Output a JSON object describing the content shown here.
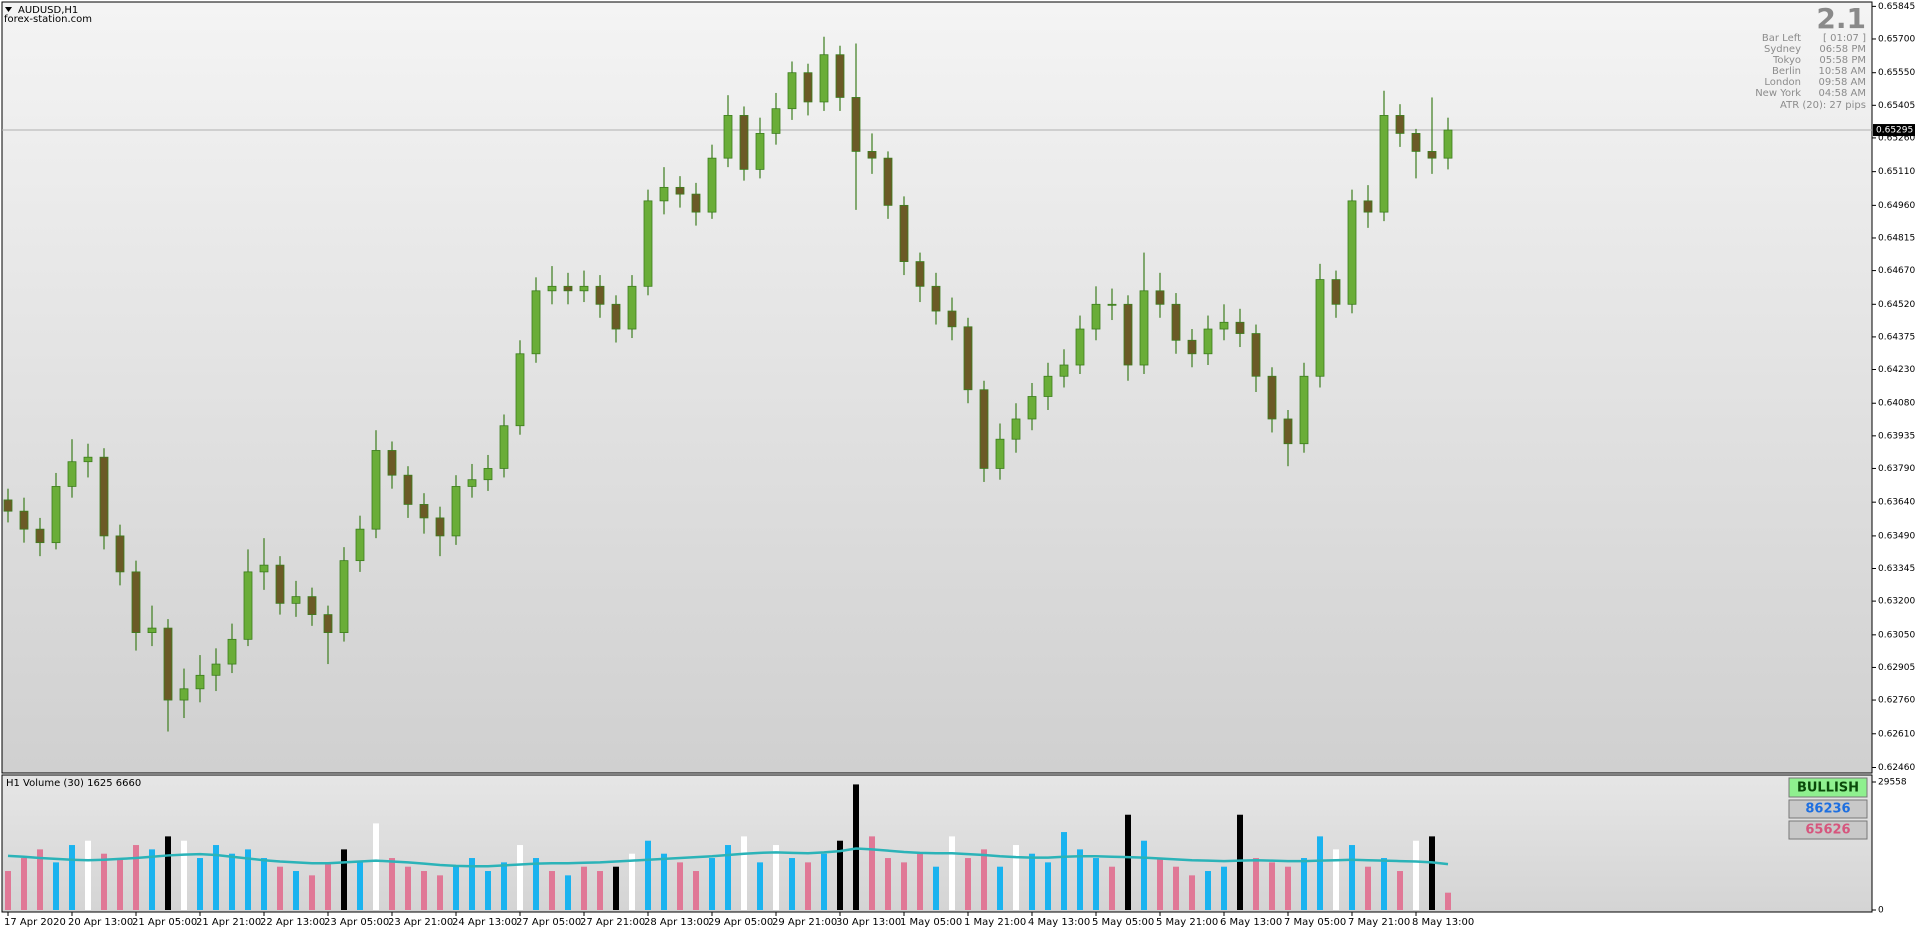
{
  "symbol": "AUDUSD,H1",
  "watermark": "forex-station.com",
  "info": {
    "version": "2.1",
    "rows": [
      [
        "Bar Left",
        "[ 01:07 ]"
      ],
      [
        "Sydney",
        "06:58 PM"
      ],
      [
        "Tokyo",
        "05:58 PM"
      ],
      [
        "Berlin",
        "10:58 AM"
      ],
      [
        "London",
        "09:58 AM"
      ],
      [
        "New York",
        "04:58 AM"
      ]
    ],
    "atr": "ATR (20): 27 pips"
  },
  "chart_data": [
    {
      "type": "candlestick",
      "categories": [
        "17 Apr 2020",
        null,
        null,
        null,
        "20 Apr 13:00",
        null,
        null,
        null,
        "21 Apr 05:00",
        null,
        null,
        null,
        "21 Apr 21:00",
        null,
        null,
        null,
        "22 Apr 13:00",
        null,
        null,
        null,
        "23 Apr 05:00",
        null,
        null,
        null,
        "23 Apr 21:00",
        null,
        null,
        null,
        "24 Apr 13:00",
        null,
        null,
        null,
        "27 Apr 05:00",
        null,
        null,
        null,
        "27 Apr 21:00",
        null,
        null,
        null,
        "28 Apr 13:00",
        null,
        null,
        null,
        "29 Apr 05:00",
        null,
        null,
        null,
        "29 Apr 21:00",
        null,
        null,
        null,
        "30 Apr 13:00",
        null,
        null,
        null,
        "1 May 05:00",
        null,
        null,
        null,
        "1 May 21:00",
        null,
        null,
        null,
        "4 May 13:00",
        null,
        null,
        null,
        "5 May 05:00",
        null,
        null,
        null,
        "5 May 21:00",
        null,
        null,
        null,
        "6 May 13:00",
        null,
        null,
        null,
        "7 May 05:00",
        null,
        null,
        null,
        "7 May 21:00",
        null,
        null,
        null,
        "8 May 13:00",
        null,
        null
      ],
      "open": [
        0.6365,
        0.636,
        0.6352,
        0.6346,
        0.6371,
        0.6382,
        0.6384,
        0.6349,
        0.6333,
        0.6306,
        0.6308,
        0.6276,
        0.6281,
        0.6287,
        0.6292,
        0.6303,
        0.6333,
        0.6336,
        0.6319,
        0.6322,
        0.6314,
        0.6306,
        0.6338,
        0.6352,
        0.6387,
        0.6376,
        0.6363,
        0.6357,
        0.6349,
        0.6371,
        0.6374,
        0.6379,
        0.6398,
        0.643,
        0.6458,
        0.646,
        0.6458,
        0.646,
        0.6452,
        0.6441,
        0.646,
        0.6498,
        0.6504,
        0.6501,
        0.6493,
        0.6517,
        0.6536,
        0.6512,
        0.6528,
        0.6539,
        0.6555,
        0.6542,
        0.6563,
        0.6544,
        0.652,
        0.6517,
        0.6496,
        0.6471,
        0.646,
        0.6449,
        0.6442,
        0.6414,
        0.6379,
        0.6392,
        0.6401,
        0.6411,
        0.642,
        0.6425,
        0.6441,
        0.6452,
        0.6452,
        0.6425,
        0.6458,
        0.6452,
        0.6436,
        0.643,
        0.6441,
        0.6444,
        0.6439,
        0.642,
        0.6401,
        0.639,
        0.642,
        0.6463,
        0.6452,
        0.6498,
        0.6493,
        0.6536,
        0.6528,
        0.652,
        0.6517
      ],
      "high": [
        0.637,
        0.6366,
        0.6357,
        0.6377,
        0.6392,
        0.639,
        0.6388,
        0.6354,
        0.6338,
        0.6318,
        0.6312,
        0.629,
        0.6296,
        0.6299,
        0.631,
        0.6343,
        0.6348,
        0.634,
        0.6329,
        0.6326,
        0.6318,
        0.6344,
        0.6358,
        0.6396,
        0.6391,
        0.638,
        0.6368,
        0.6362,
        0.6376,
        0.6381,
        0.6385,
        0.6403,
        0.6436,
        0.6464,
        0.6469,
        0.6466,
        0.6467,
        0.6465,
        0.6456,
        0.6465,
        0.6503,
        0.6513,
        0.6509,
        0.6506,
        0.6523,
        0.6545,
        0.654,
        0.6535,
        0.6546,
        0.656,
        0.6559,
        0.6571,
        0.6567,
        0.6568,
        0.6528,
        0.652,
        0.65,
        0.6475,
        0.6466,
        0.6455,
        0.6446,
        0.6418,
        0.6399,
        0.6408,
        0.6417,
        0.6426,
        0.6432,
        0.6447,
        0.646,
        0.6459,
        0.6456,
        0.6475,
        0.6466,
        0.6457,
        0.6441,
        0.6447,
        0.6452,
        0.645,
        0.6443,
        0.6424,
        0.6405,
        0.6426,
        0.647,
        0.6467,
        0.6503,
        0.6505,
        0.6547,
        0.6541,
        0.653,
        0.6544,
        0.6535
      ],
      "low": [
        0.6355,
        0.6346,
        0.634,
        0.6343,
        0.6366,
        0.6375,
        0.6343,
        0.6327,
        0.6298,
        0.63,
        0.6262,
        0.6268,
        0.6275,
        0.628,
        0.6288,
        0.63,
        0.6325,
        0.6314,
        0.6313,
        0.6309,
        0.6292,
        0.6302,
        0.6333,
        0.6348,
        0.637,
        0.6357,
        0.635,
        0.634,
        0.6345,
        0.6366,
        0.6369,
        0.6375,
        0.6394,
        0.6426,
        0.6452,
        0.6452,
        0.6453,
        0.6446,
        0.6435,
        0.6437,
        0.6456,
        0.6492,
        0.6495,
        0.6487,
        0.649,
        0.6513,
        0.6507,
        0.6508,
        0.6523,
        0.6534,
        0.6536,
        0.6538,
        0.6538,
        0.6494,
        0.651,
        0.649,
        0.6465,
        0.6453,
        0.6443,
        0.6436,
        0.6408,
        0.6373,
        0.6374,
        0.6386,
        0.6396,
        0.6405,
        0.6415,
        0.6421,
        0.6436,
        0.6445,
        0.6418,
        0.6421,
        0.6446,
        0.643,
        0.6424,
        0.6425,
        0.6436,
        0.6433,
        0.6413,
        0.6395,
        0.638,
        0.6386,
        0.6415,
        0.6446,
        0.6448,
        0.6486,
        0.6489,
        0.6522,
        0.6508,
        0.651,
        0.6512
      ],
      "close": [
        0.636,
        0.6352,
        0.6346,
        0.6371,
        0.6382,
        0.6384,
        0.6349,
        0.6333,
        0.6306,
        0.6308,
        0.6276,
        0.6281,
        0.6287,
        0.6292,
        0.6303,
        0.6333,
        0.6336,
        0.6319,
        0.6322,
        0.6314,
        0.6306,
        0.6338,
        0.6352,
        0.6387,
        0.6376,
        0.6363,
        0.6357,
        0.6349,
        0.6371,
        0.6374,
        0.6379,
        0.6398,
        0.643,
        0.6458,
        0.646,
        0.6458,
        0.646,
        0.6452,
        0.6441,
        0.646,
        0.6498,
        0.6504,
        0.6501,
        0.6493,
        0.6517,
        0.6536,
        0.6512,
        0.6528,
        0.6539,
        0.6555,
        0.6542,
        0.6563,
        0.6544,
        0.652,
        0.6517,
        0.6496,
        0.6471,
        0.646,
        0.6449,
        0.6442,
        0.6414,
        0.6379,
        0.6392,
        0.6401,
        0.6411,
        0.642,
        0.6425,
        0.6441,
        0.6452,
        0.6452,
        0.6425,
        0.6458,
        0.6452,
        0.6436,
        0.643,
        0.6441,
        0.6444,
        0.6439,
        0.642,
        0.6401,
        0.639,
        0.642,
        0.6463,
        0.6452,
        0.6498,
        0.6493,
        0.6536,
        0.6528,
        0.652,
        0.6517,
        0.65295
      ],
      "up_color": "#6aad38",
      "down_color": "#6b5a26",
      "wick_color": "#3c7d1d",
      "ylim": [
        0.6244,
        0.6586
      ],
      "yticks": [
        0.65845,
        {
          "value": 0.657,
          "label": "0.65700"
        },
        {
          "value": 0.6555,
          "label": "0.65550"
        },
        0.65405,
        {
          "value": 0.6526,
          "label": "0.65260"
        },
        {
          "value": 0.6511,
          "label": "0.65110"
        },
        {
          "value": 0.6496,
          "label": "0.64960"
        },
        0.64815,
        {
          "value": 0.6467,
          "label": "0.64670"
        },
        {
          "value": 0.6452,
          "label": "0.64520"
        },
        0.64375,
        {
          "value": 0.6423,
          "label": "0.64230"
        },
        {
          "value": 0.6408,
          "label": "0.64080"
        },
        0.63935,
        {
          "value": 0.6379,
          "label": "0.63790"
        },
        {
          "value": 0.6364,
          "label": "0.63640"
        },
        {
          "value": 0.6349,
          "label": "0.63490"
        },
        0.63345,
        {
          "value": 0.632,
          "label": "0.63200"
        },
        {
          "value": 0.6305,
          "label": "0.63050"
        },
        0.62905,
        {
          "value": 0.6276,
          "label": "0.62760"
        },
        {
          "value": 0.6261,
          "label": "0.62610"
        },
        {
          "value": 0.6246,
          "label": "0.62460"
        }
      ],
      "current_price": 0.65295,
      "grid": false
    },
    {
      "type": "bar",
      "title": "H1 Volume (30) 1625 6660",
      "values": [
        9000,
        12000,
        14000,
        11000,
        15000,
        16000,
        13000,
        12000,
        15000,
        14000,
        17000,
        16000,
        12000,
        15000,
        13000,
        14000,
        12000,
        10000,
        9000,
        8000,
        11000,
        14000,
        11000,
        20000,
        12000,
        10000,
        9000,
        8000,
        10000,
        12000,
        9000,
        11000,
        15000,
        12000,
        9000,
        8000,
        10000,
        9000,
        10000,
        13000,
        16000,
        13000,
        11000,
        9000,
        12000,
        15000,
        17000,
        11000,
        15000,
        12000,
        11000,
        13000,
        16000,
        29000,
        17000,
        12000,
        11000,
        13000,
        10000,
        17000,
        12000,
        14000,
        10000,
        15000,
        13000,
        11000,
        18000,
        14000,
        12000,
        10000,
        22000,
        16000,
        12000,
        10000,
        8000,
        9000,
        10000,
        22000,
        12000,
        11000,
        10000,
        12000,
        17000,
        14000,
        15000,
        10000,
        12000,
        9000,
        16000,
        17000,
        4000
      ],
      "colors": [
        "#e07896",
        "#e07896",
        "#e07896",
        "#1ab3ef",
        "#1ab3ef",
        "#ffffff",
        "#e07896",
        "#e07896",
        "#e07896",
        "#1ab3ef",
        "#000000",
        "#ffffff",
        "#1ab3ef",
        "#1ab3ef",
        "#1ab3ef",
        "#1ab3ef",
        "#1ab3ef",
        "#e07896",
        "#1ab3ef",
        "#e07896",
        "#e07896",
        "#000000",
        "#1ab3ef",
        "#ffffff",
        "#e07896",
        "#e07896",
        "#e07896",
        "#e07896",
        "#1ab3ef",
        "#1ab3ef",
        "#1ab3ef",
        "#1ab3ef",
        "#ffffff",
        "#1ab3ef",
        "#e07896",
        "#1ab3ef",
        "#e07896",
        "#e07896",
        "#000000",
        "#ffffff",
        "#1ab3ef",
        "#1ab3ef",
        "#e07896",
        "#e07896",
        "#1ab3ef",
        "#1ab3ef",
        "#ffffff",
        "#1ab3ef",
        "#ffffff",
        "#1ab3ef",
        "#e07896",
        "#1ab3ef",
        "#000000",
        "#000000",
        "#e07896",
        "#e07896",
        "#e07896",
        "#e07896",
        "#1ab3ef",
        "#ffffff",
        "#e07896",
        "#e07896",
        "#1ab3ef",
        "#ffffff",
        "#1ab3ef",
        "#1ab3ef",
        "#1ab3ef",
        "#1ab3ef",
        "#1ab3ef",
        "#e07896",
        "#000000",
        "#1ab3ef",
        "#e07896",
        "#e07896",
        "#e07896",
        "#1ab3ef",
        "#1ab3ef",
        "#000000",
        "#e07896",
        "#e07896",
        "#e07896",
        "#1ab3ef",
        "#1ab3ef",
        "#ffffff",
        "#1ab3ef",
        "#e07896",
        "#1ab3ef",
        "#e07896",
        "#ffffff",
        "#000000",
        "#e07896"
      ],
      "ma_values": [
        12500,
        12300,
        12000,
        11800,
        11600,
        11500,
        11600,
        11800,
        12000,
        12300,
        12600,
        12800,
        12900,
        12700,
        12300,
        11900,
        11500,
        11200,
        11000,
        10800,
        10800,
        11000,
        11200,
        11400,
        11200,
        11000,
        10700,
        10400,
        10200,
        10100,
        10100,
        10300,
        10500,
        10700,
        10800,
        10800,
        10900,
        11000,
        11200,
        11400,
        11600,
        11800,
        12000,
        12200,
        12400,
        12700,
        13000,
        13200,
        13300,
        13200,
        13100,
        13300,
        13600,
        14200,
        14000,
        13700,
        13400,
        13200,
        13100,
        13100,
        12900,
        12700,
        12400,
        12200,
        12100,
        12100,
        12300,
        12400,
        12400,
        12300,
        12200,
        12100,
        11900,
        11700,
        11500,
        11400,
        11300,
        11400,
        11500,
        11400,
        11300,
        11300,
        11400,
        11500,
        11600,
        11500,
        11400,
        11300,
        11200,
        11000,
        10600
      ],
      "ma_color": "#2bb3b8",
      "ylim": [
        0,
        29558
      ],
      "yticks": [
        0,
        29558
      ],
      "summary": {
        "signal": "BULLISH",
        "bull_volume": 86236,
        "bear_volume": 65626
      }
    }
  ]
}
